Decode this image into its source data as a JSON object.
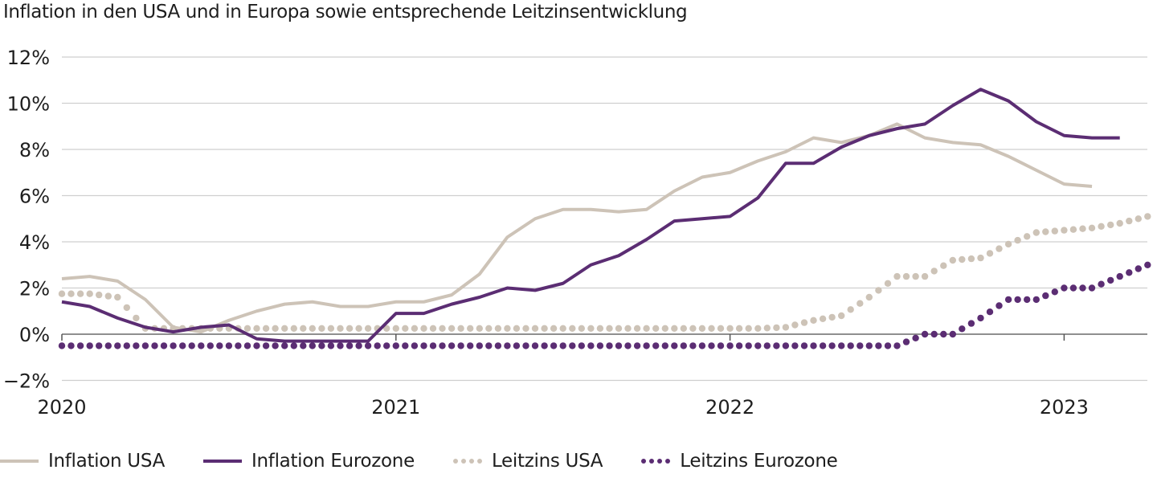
{
  "chart_data": {
    "type": "line",
    "title": "Inflation in den USA und in Europa sowie entsprechende Leitzinsentwicklung",
    "xlabel": "",
    "ylabel": "",
    "ylim": [
      -2,
      12
    ],
    "yticks": [
      -2,
      0,
      2,
      4,
      6,
      8,
      10,
      12
    ],
    "ytick_labels": [
      "−2%",
      "0%",
      "2%",
      "4%",
      "6%",
      "8%",
      "10%",
      "12%"
    ],
    "xlim": [
      0,
      38.5
    ],
    "xticks": [
      0,
      12,
      24,
      36
    ],
    "xtick_labels": [
      "2020",
      "2021",
      "2022",
      "2023"
    ],
    "x_unit": "months since Jan 2020",
    "grid": true,
    "legend_position": "bottom",
    "colors": {
      "usa": "#cdc3b7",
      "eurozone": "#5b2d73",
      "grid": "#cfcfcf",
      "axis": "#7f7f7f"
    },
    "series": [
      {
        "name": "Inflation USA",
        "style": "solid",
        "color_key": "usa",
        "x": [
          0,
          1,
          2,
          3,
          4,
          5,
          6,
          7,
          8,
          9,
          10,
          11,
          12,
          13,
          14,
          15,
          16,
          17,
          18,
          19,
          20,
          21,
          22,
          23,
          24,
          25,
          26,
          27,
          28,
          29,
          30,
          31,
          32,
          33,
          34,
          35,
          36,
          37
        ],
        "values": [
          2.4,
          2.5,
          2.3,
          1.5,
          0.3,
          0.1,
          0.6,
          1.0,
          1.3,
          1.4,
          1.2,
          1.2,
          1.4,
          1.4,
          1.7,
          2.6,
          4.2,
          5.0,
          5.4,
          5.4,
          5.3,
          5.4,
          6.2,
          6.8,
          7.0,
          7.5,
          7.9,
          8.5,
          8.3,
          8.6,
          9.1,
          8.5,
          8.3,
          8.2,
          7.7,
          7.1,
          6.5,
          6.4
        ]
      },
      {
        "name": "Inflation Eurozone",
        "style": "solid",
        "color_key": "eurozone",
        "x": [
          0,
          1,
          2,
          3,
          4,
          5,
          6,
          7,
          8,
          9,
          10,
          11,
          12,
          13,
          14,
          15,
          16,
          17,
          18,
          19,
          20,
          21,
          22,
          23,
          24,
          25,
          26,
          27,
          28,
          29,
          30,
          31,
          32,
          33,
          34,
          35,
          36,
          37,
          38
        ],
        "values": [
          1.4,
          1.2,
          0.7,
          0.3,
          0.1,
          0.3,
          0.4,
          -0.2,
          -0.3,
          -0.3,
          -0.3,
          -0.3,
          0.9,
          0.9,
          1.3,
          1.6,
          2.0,
          1.9,
          2.2,
          3.0,
          3.4,
          4.1,
          4.9,
          5.0,
          5.1,
          5.9,
          7.4,
          7.4,
          8.1,
          8.6,
          8.9,
          9.1,
          9.9,
          10.6,
          10.1,
          9.2,
          8.6,
          8.5,
          8.5
        ]
      },
      {
        "name": "Leitzins USA",
        "style": "dotted",
        "color_key": "usa",
        "x": [
          0,
          1,
          2,
          3,
          4,
          5,
          6,
          7,
          8,
          9,
          10,
          11,
          12,
          13,
          14,
          15,
          16,
          17,
          18,
          19,
          20,
          21,
          22,
          23,
          24,
          25,
          26,
          27,
          28,
          29,
          30,
          31,
          32,
          33,
          34,
          35,
          36,
          37,
          38,
          39
        ],
        "values": [
          1.75,
          1.75,
          1.6,
          0.25,
          0.25,
          0.25,
          0.25,
          0.25,
          0.25,
          0.25,
          0.25,
          0.25,
          0.25,
          0.25,
          0.25,
          0.25,
          0.25,
          0.25,
          0.25,
          0.25,
          0.25,
          0.25,
          0.25,
          0.25,
          0.25,
          0.25,
          0.3,
          0.6,
          0.8,
          1.6,
          2.5,
          2.5,
          3.2,
          3.3,
          3.9,
          4.4,
          4.5,
          4.6,
          4.8,
          5.1
        ]
      },
      {
        "name": "Leitzins Eurozone",
        "style": "dotted",
        "color_key": "eurozone",
        "x": [
          0,
          1,
          2,
          3,
          4,
          5,
          6,
          7,
          8,
          9,
          10,
          11,
          12,
          13,
          14,
          15,
          16,
          17,
          18,
          19,
          20,
          21,
          22,
          23,
          24,
          25,
          26,
          27,
          28,
          29,
          30,
          31,
          32,
          33,
          34,
          35,
          36,
          37,
          38,
          39
        ],
        "values": [
          -0.5,
          -0.5,
          -0.5,
          -0.5,
          -0.5,
          -0.5,
          -0.5,
          -0.5,
          -0.5,
          -0.5,
          -0.5,
          -0.5,
          -0.5,
          -0.5,
          -0.5,
          -0.5,
          -0.5,
          -0.5,
          -0.5,
          -0.5,
          -0.5,
          -0.5,
          -0.5,
          -0.5,
          -0.5,
          -0.5,
          -0.5,
          -0.5,
          -0.5,
          -0.5,
          -0.5,
          0.0,
          0.0,
          0.7,
          1.5,
          1.5,
          2.0,
          2.0,
          2.5,
          3.0
        ]
      }
    ]
  },
  "legend": {
    "items": [
      {
        "label": "Inflation USA",
        "style": "solid",
        "color": "#cdc3b7"
      },
      {
        "label": "Inflation Eurozone",
        "style": "solid",
        "color": "#5b2d73"
      },
      {
        "label": "Leitzins USA",
        "style": "dotted",
        "color": "#cdc3b7"
      },
      {
        "label": "Leitzins Eurozone",
        "style": "dotted",
        "color": "#5b2d73"
      }
    ]
  }
}
